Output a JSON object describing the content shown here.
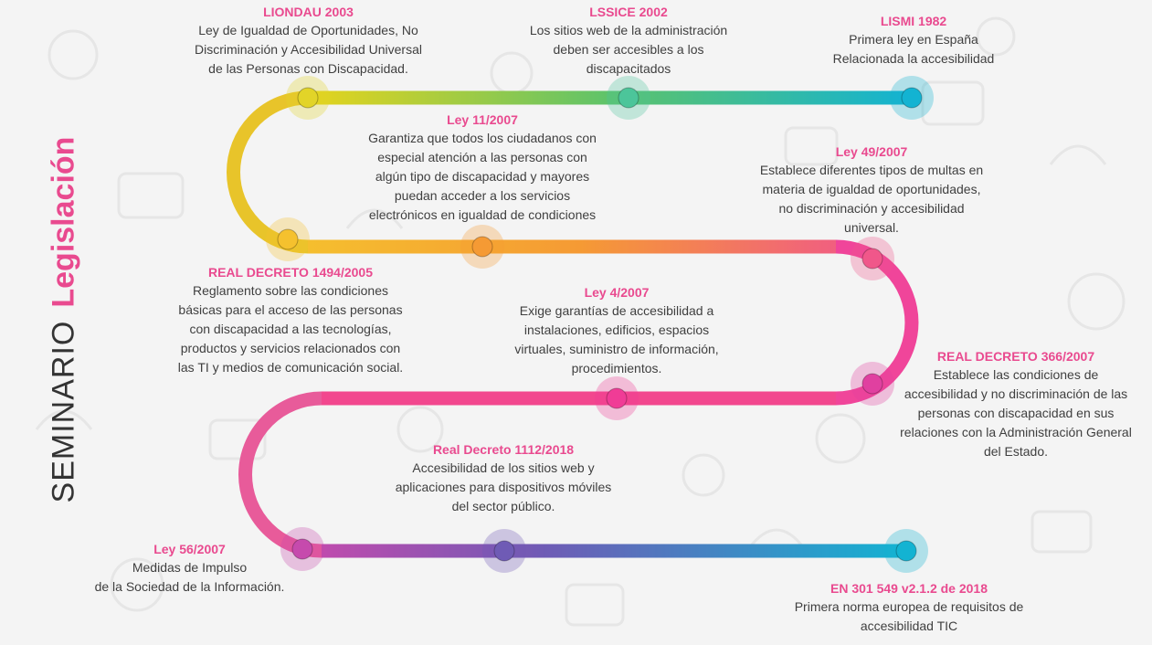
{
  "title": {
    "prefix": "SEMINARIO",
    "highlight": "Legislación"
  },
  "colors": {
    "title_accent": "#e94a8f",
    "body_text": "#3f3f3f",
    "background": "#f4f4f4"
  },
  "events": [
    {
      "title": "LISMI 1982",
      "text": "Primera ley en España\nRelacionada la accesibilidad",
      "color": "#13b3d2"
    },
    {
      "title": "LSSICE 2002",
      "text": "Los sitios web de la administración\ndeben ser accesibles a los\ndiscapacitados",
      "color": "#4cc59a"
    },
    {
      "title": "LIONDAU 2003",
      "text": "Ley de Igualdad de Oportunidades, No\nDiscriminación y Accesibilidad Universal\nde las Personas con Discapacidad.",
      "color": "#e2d428"
    },
    {
      "title": "REAL DECRETO 1494/2005",
      "text": "Reglamento sobre las condiciones\nbásicas para el acceso de las personas\ncon discapacidad a las tecnologías,\nproductos y servicios relacionados con\nlas TI y medios de comunicación social.",
      "color": "#f5c12e"
    },
    {
      "title": "Ley 11/2007",
      "text": "Garantiza que todos los ciudadanos con\nespecial atención a las personas con\nalgún tipo de discapacidad y mayores\npuedan acceder a los servicios\nelectrónicos en igualdad de condiciones",
      "color": "#f59a34"
    },
    {
      "title": "Ley 49/2007",
      "text": "Establece diferentes tipos de multas en\nmateria de igualdad de oportunidades,\nno discriminación y accesibilidad\nuniversal.",
      "color": "#f0578a"
    },
    {
      "title": "REAL DECRETO 366/2007",
      "text": "Establece las condiciones de\naccesibilidad y no discriminación de las\npersonas con discapacidad en sus\nrelaciones con la Administración General\ndel Estado.",
      "color": "#e040a0"
    },
    {
      "title": "Ley 4/2007",
      "text": "Exige garantías de accesibilidad a\ninstalaciones, edificios, espacios\nvirtuales, suministro de información,\nprocedimientos.",
      "color": "#f03c96"
    },
    {
      "title": "Real Decreto 1112/2018",
      "text": "Accesibilidad de los sitios web y\naplicaciones para dispositivos móviles\ndel sector público.",
      "color": "#6f5bb5"
    },
    {
      "title": "Ley 56/2007",
      "text": "Medidas de Impulso\nde la Sociedad de la Información.",
      "color": "#c64aad"
    },
    {
      "title": "EN 301 549 v2.1.2 de 2018",
      "text": "Primera norma europea de requisitos de\naccesibilidad TIC",
      "color": "#13b3d2"
    }
  ]
}
